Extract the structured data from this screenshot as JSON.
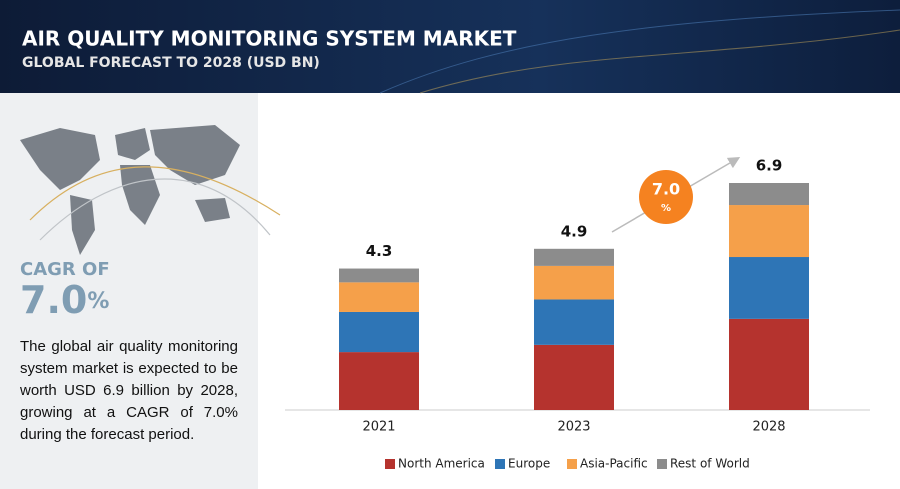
{
  "header": {
    "title": "AIR QUALITY MONITORING SYSTEM MARKET",
    "subtitle": "GLOBAL FORECAST TO 2028 (USD BN)"
  },
  "sidebar": {
    "cagr_label": "CAGR OF",
    "cagr_value": "7.0",
    "cagr_unit": "%",
    "description": "The global air quality monitoring system market is expected to be worth USD 6.9 billion by 2028, growing at a CAGR of 7.0% during the forecast period."
  },
  "chart_data": {
    "type": "stacked_bar",
    "categories": [
      "2021",
      "2023",
      "2028"
    ],
    "series": [
      {
        "name": "North America",
        "color": "#b5332e",
        "values": [
          1.76,
          1.98,
          2.77
        ]
      },
      {
        "name": "Europe",
        "color": "#2e75b6",
        "values": [
          1.22,
          1.38,
          1.88
        ]
      },
      {
        "name": "Asia-Pacific",
        "color": "#f5a04a",
        "values": [
          0.9,
          1.02,
          1.58
        ]
      },
      {
        "name": "Rest of World",
        "color": "#8c8c8c",
        "values": [
          0.42,
          0.52,
          0.67
        ]
      }
    ],
    "totals": [
      4.3,
      4.9,
      6.9
    ],
    "legend": "bottom"
  }
}
